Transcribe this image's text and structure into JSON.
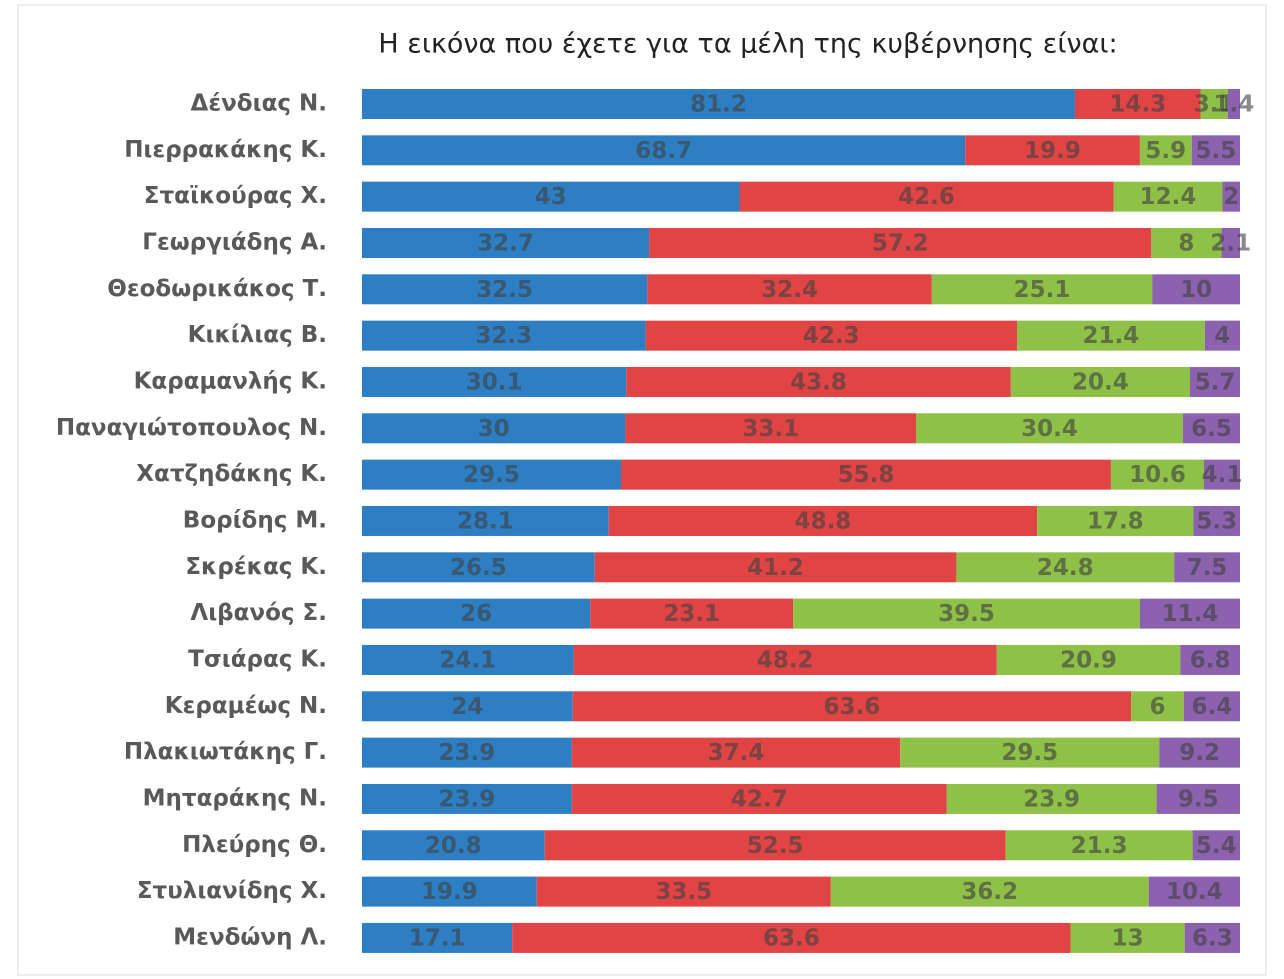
{
  "chart_data": {
    "type": "bar",
    "orientation": "horizontal",
    "stacked": true,
    "title": "Η εικόνα που έχετε για τα μέλη της κυβέρνησης είναι:",
    "categories": [
      "Δένδιας Ν.",
      "Πιερρακάκης Κ.",
      "Σταϊκούρας Χ.",
      "Γεωργιάδης Α.",
      "Θεοδωρικάκος Τ.",
      "Κικίλιας Β.",
      "Καραμανλής Κ.",
      "Παναγιώτοπουλος Ν.",
      "Χατζηδάκης Κ.",
      "Βορίδης Μ.",
      "Σκρέκας Κ.",
      "Λιβανός Σ.",
      "Τσιάρας Κ.",
      "Κεραμέως Ν.",
      "Πλακιωτάκης Γ.",
      "Μηταράκης Ν.",
      "Πλεύρης Θ.",
      "Στυλιανίδης Χ.",
      "Μενδώνη Λ."
    ],
    "xlim": [
      0,
      100
    ],
    "series": [
      {
        "color": "#2e7ec3",
        "values": [
          81.2,
          68.7,
          43,
          32.7,
          32.5,
          32.3,
          30.1,
          30,
          29.5,
          28.1,
          26.5,
          26,
          24.1,
          24,
          23.9,
          23.9,
          20.8,
          19.9,
          17.1
        ]
      },
      {
        "color": "#e04444",
        "values": [
          14.3,
          19.9,
          42.6,
          57.2,
          32.4,
          42.3,
          43.8,
          33.1,
          55.8,
          48.8,
          41.2,
          23.1,
          48.2,
          63.6,
          37.4,
          42.7,
          52.5,
          33.5,
          63.6
        ]
      },
      {
        "color": "#8fc149",
        "values": [
          3.1,
          5.9,
          12.4,
          8,
          25.1,
          21.4,
          20.4,
          30.4,
          10.6,
          17.8,
          24.8,
          39.5,
          20.9,
          6,
          29.5,
          23.9,
          21.3,
          36.2,
          13
        ]
      },
      {
        "color": "#8c62ae",
        "values": [
          1.4,
          5.5,
          2,
          2.1,
          10,
          4,
          5.7,
          6.5,
          4.1,
          5.3,
          7.5,
          11.4,
          6.8,
          6.4,
          9.2,
          9.5,
          5.4,
          10.4,
          6.3
        ]
      }
    ]
  }
}
